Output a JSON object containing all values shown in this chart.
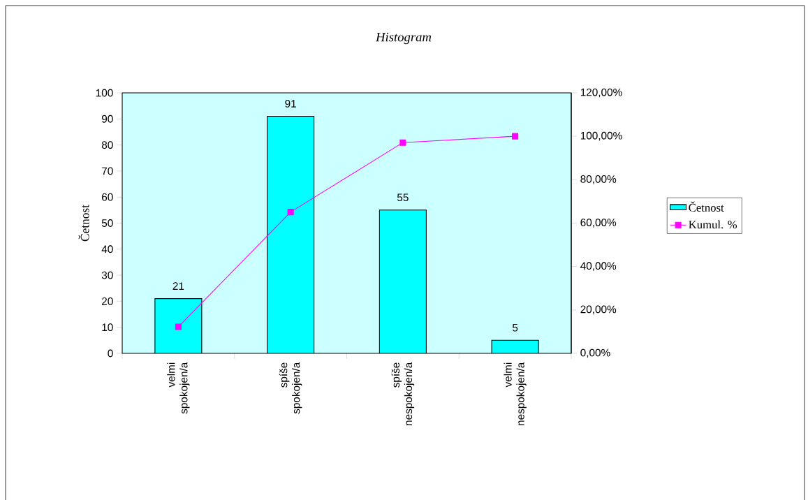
{
  "chart_data": {
    "type": "bar",
    "title": "Histogram",
    "categories": [
      "velmi spokojen/a",
      "spíše spokojen/a",
      "spíše nespokojen/a",
      "velmi nespokojen/a"
    ],
    "ylabel": "Četnost",
    "ylim": [
      0,
      100
    ],
    "yticks": [
      0,
      10,
      20,
      30,
      40,
      50,
      60,
      70,
      80,
      90,
      100
    ],
    "y2lim": [
      0,
      120
    ],
    "y2ticks": [
      {
        "value": 0,
        "label": "0,00%"
      },
      {
        "value": 20,
        "label": "20,00%"
      },
      {
        "value": 40,
        "label": "40,00%"
      },
      {
        "value": 60,
        "label": "60,00%"
      },
      {
        "value": 80,
        "label": "80,00%"
      },
      {
        "value": 100,
        "label": "100,00%"
      },
      {
        "value": 120,
        "label": "120,00%"
      }
    ],
    "legend": "right",
    "marker": "square",
    "series": [
      {
        "name": "Četnost",
        "color": "#00ffff",
        "values": [
          21,
          91,
          55,
          5
        ],
        "value_labels": [
          "21",
          "91",
          "55",
          "5"
        ]
      },
      {
        "name": "Kumul. %",
        "type": "line",
        "axis": "y2",
        "color": "#ff00ff",
        "values": [
          12.2,
          65.1,
          97.1,
          100
        ]
      }
    ]
  }
}
